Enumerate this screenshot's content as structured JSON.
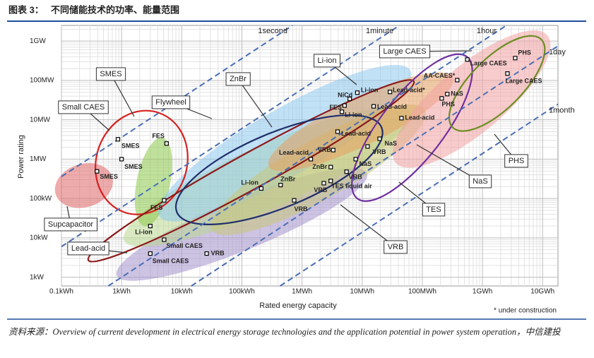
{
  "chart_data": {
    "type": "scatter",
    "figure_label": "图表 3：",
    "title": "不同储能技术的功率、能量范围",
    "x_label": "Rated energy capacity",
    "y_label": "Power rating",
    "log_x": true,
    "log_y": true,
    "grid": true,
    "xlim": [
      0.1,
      18000000
    ],
    "ylim": [
      0.6,
      2500000
    ],
    "xticks": [
      {
        "value": 0.1,
        "label": "0.1kWh"
      },
      {
        "value": 1,
        "label": "1kWh"
      },
      {
        "value": 10,
        "label": "10kWh"
      },
      {
        "value": 100,
        "label": "100kWh"
      },
      {
        "value": 1000,
        "label": "1MWh"
      },
      {
        "value": 10000,
        "label": "10MWh"
      },
      {
        "value": 100000,
        "label": "100MWh"
      },
      {
        "value": 1000000,
        "label": "1GWh"
      },
      {
        "value": 10000000,
        "label": "10GWh"
      }
    ],
    "yticks": [
      {
        "value": 1,
        "label": "1kW"
      },
      {
        "value": 10,
        "label": "10kW"
      },
      {
        "value": 100,
        "label": "100kW"
      },
      {
        "value": 1000,
        "label": "1MW"
      },
      {
        "value": 10000,
        "label": "10MW"
      },
      {
        "value": 100000,
        "label": "100MW"
      },
      {
        "value": 1000000,
        "label": "1GW"
      }
    ],
    "durations": [
      {
        "value": 0.000277778,
        "label": "1second"
      },
      {
        "value": 0.0166667,
        "label": "1minute"
      },
      {
        "value": 1,
        "label": "1hour"
      },
      {
        "value": 24,
        "label": "1day"
      },
      {
        "value": 720,
        "label": "1month"
      }
    ],
    "regions": [
      {
        "from": [
          0.08,
          130
        ],
        "to": [
          0.7,
          350
        ],
        "width": 1.1,
        "color": "#e06666",
        "fill": true
      },
      {
        "from": [
          0.83,
          1.1
        ],
        "to": [
          12000,
          440
        ],
        "width": 1.3,
        "color": "#a491cc",
        "fill": true
      },
      {
        "from": [
          1.1,
          8.6
        ],
        "to": [
          63000,
          15000
        ],
        "width": 1.6,
        "color": "#b9d78f",
        "fill": true
      },
      {
        "from": [
          2.4,
          20
        ],
        "to": [
          4.8,
          3500
        ],
        "width": 0.85,
        "color": "#8cc84b",
        "fill": true
      },
      {
        "from": [
          4.2,
          36
        ],
        "to": [
          63000,
          180000
        ],
        "width": 1.7,
        "color": "#8ec8ef",
        "fill": true
      },
      {
        "from": [
          32,
          16
        ],
        "to": [
          110000,
          18000
        ],
        "width": 1.5,
        "color": "#c9c77a",
        "fill": true
      },
      {
        "from": [
          280,
          660
        ],
        "to": [
          320000,
          120000
        ],
        "width": 1.2,
        "color": "#e8a060",
        "fill": true
      },
      {
        "from": [
          36000,
          810
        ],
        "to": [
          12000000,
          1400000
        ],
        "width": 1.7,
        "color": "#f2a3a3",
        "fill": true
      },
      {
        "from": [
          1.1,
          45
        ],
        "to": [
          4.2,
          15000
        ],
        "width": 2.3,
        "color": "#d62020",
        "fill": false
      },
      {
        "from": [
          0.28,
          2.7
        ],
        "to": [
          72000,
          95000
        ],
        "width": 0.9,
        "color": "#8b1a1a",
        "fill": false
      },
      {
        "from": [
          8.3,
          45
        ],
        "to": [
          21000,
          6400
        ],
        "width": 1.9,
        "color": "#1f2f6b",
        "fill": false
      },
      {
        "from": [
          8300,
          100
        ],
        "to": [
          550000,
          400000
        ],
        "width": 1.6,
        "color": "#7030a0",
        "fill": false
      },
      {
        "from": [
          320000,
          6400
        ],
        "to": [
          9500000,
          1100000
        ],
        "width": 1.3,
        "color": "#6b8e23",
        "fill": false
      }
    ],
    "points": [
      {
        "x": 0.87,
        "y": 3200,
        "label": "SMES"
      },
      {
        "x": 1.0,
        "y": 1000,
        "label": "SMES"
      },
      {
        "x": 0.39,
        "y": 490,
        "label": "SMES"
      },
      {
        "x": 5.6,
        "y": 2500,
        "label": "FES"
      },
      {
        "x": 5.1,
        "y": 90,
        "label": "FES"
      },
      {
        "x": 3,
        "y": 20,
        "label": "Li-ion"
      },
      {
        "x": 5.1,
        "y": 9,
        "label": "Small CAES"
      },
      {
        "x": 3,
        "y": 4,
        "label": "Small CAES"
      },
      {
        "x": 26,
        "y": 4,
        "label": "VRB"
      },
      {
        "x": 210,
        "y": 180,
        "label": "Li-ion"
      },
      {
        "x": 440,
        "y": 220,
        "label": "ZnBr"
      },
      {
        "x": 740,
        "y": 90,
        "label": "VRB"
      },
      {
        "x": 1400,
        "y": 1000,
        "label": "Lead-acid"
      },
      {
        "x": 3000,
        "y": 630,
        "label": "ZnBr"
      },
      {
        "x": 2300,
        "y": 245,
        "label": "VRB"
      },
      {
        "x": 3300,
        "y": 1700,
        "label": "VRB"
      },
      {
        "x": 3000,
        "y": 280,
        "label": "TES liquid air"
      },
      {
        "x": 5500,
        "y": 480,
        "label": "VRB"
      },
      {
        "x": 3900,
        "y": 5000,
        "label": "Lead-acid"
      },
      {
        "x": 4600,
        "y": 16000,
        "label": "Li-ion"
      },
      {
        "x": 5100,
        "y": 23000,
        "label": "FES"
      },
      {
        "x": 6200,
        "y": 34000,
        "label": "NiCd"
      },
      {
        "x": 8300,
        "y": 49000,
        "label": "Li-ion"
      },
      {
        "x": 7800,
        "y": 1000,
        "label": "NaS"
      },
      {
        "x": 19500,
        "y": 3300,
        "label": "NaS"
      },
      {
        "x": 12300,
        "y": 2100,
        "label": "VRB"
      },
      {
        "x": 29000,
        "y": 51000,
        "label": "Lead-acid*"
      },
      {
        "x": 15500,
        "y": 22000,
        "label": "Lead-acid"
      },
      {
        "x": 45000,
        "y": 11000,
        "label": "Lead-acid"
      },
      {
        "x": 210000,
        "y": 35000,
        "label": "PHS"
      },
      {
        "x": 260000,
        "y": 45000,
        "label": "NaS"
      },
      {
        "x": 380000,
        "y": 102000,
        "label": "AA-CAES*"
      },
      {
        "x": 560000,
        "y": 340000,
        "label": "Large CAES"
      },
      {
        "x": 3500000,
        "y": 370000,
        "label": "PHS"
      },
      {
        "x": 2600000,
        "y": 150000,
        "label": "Large CAES"
      }
    ],
    "callouts": [
      "SMES",
      "Small CAES",
      "Flywheel",
      "ZnBr",
      "Li-ion",
      "Large CAES",
      "PHS",
      "NaS",
      "TES",
      "VRB",
      "Lead-acid",
      "Supcapacitor"
    ],
    "note": "* under construction",
    "source": "资料来源：Overview of current development in electrical energy storage technologies and the application potential in power system operation，中信建投"
  }
}
